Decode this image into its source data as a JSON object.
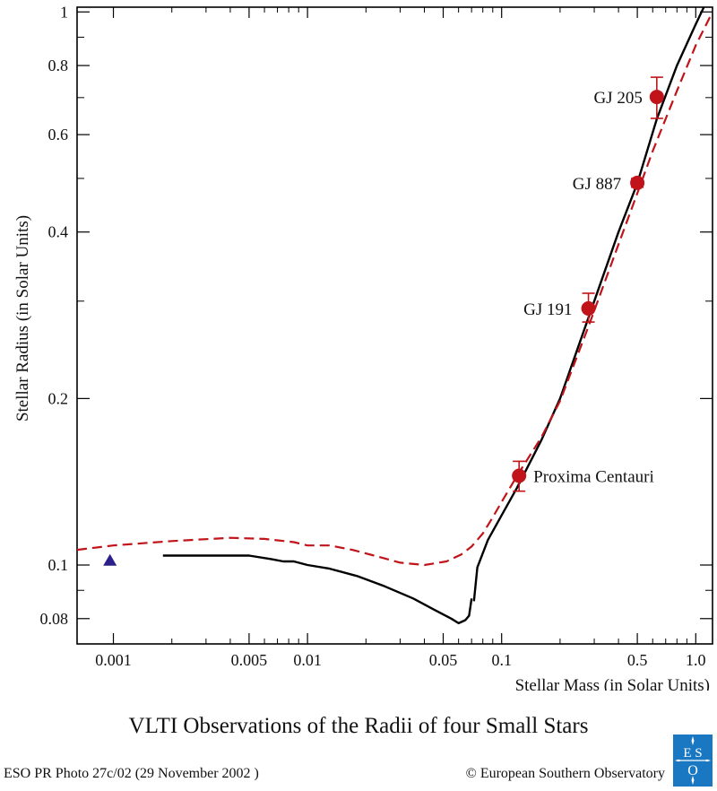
{
  "chart_data": {
    "type": "scatter",
    "title": "VLTI Observations of the Radii of four Small Stars",
    "xlabel": "Stellar Mass (in Solar Units)",
    "ylabel": "Stellar Radius (in Solar Units)",
    "xscale": "log",
    "yscale": "log",
    "xlim": [
      0.00065,
      1.22
    ],
    "ylim": [
      0.072,
      1.02
    ],
    "x_ticks": [
      {
        "value": 0.001,
        "label": "0.001"
      },
      {
        "value": 0.005,
        "label": "0.005"
      },
      {
        "value": 0.01,
        "label": "0.01"
      },
      {
        "value": 0.05,
        "label": "0.05"
      },
      {
        "value": 0.1,
        "label": "0.1"
      },
      {
        "value": 0.5,
        "label": "0.5"
      },
      {
        "value": 1.0,
        "label": "1.0"
      }
    ],
    "y_ticks": [
      {
        "value": 0.08,
        "label": "0.08"
      },
      {
        "value": 0.1,
        "label": "0.1"
      },
      {
        "value": 0.2,
        "label": "0.2"
      },
      {
        "value": 0.4,
        "label": "0.4"
      },
      {
        "value": 0.6,
        "label": "0.6"
      },
      {
        "value": 0.8,
        "label": "0.8"
      },
      {
        "value": 1.0,
        "label": "1"
      }
    ],
    "grid": false,
    "observations": [
      {
        "name": "Proxima Centauri",
        "x": 0.123,
        "y": 0.145,
        "y_low": 0.136,
        "y_high": 0.154
      },
      {
        "name": "GJ 191",
        "x": 0.28,
        "y": 0.291,
        "y_low": 0.275,
        "y_high": 0.31
      },
      {
        "name": "GJ 887",
        "x": 0.5,
        "y": 0.491,
        "y_low": 0.482,
        "y_high": 0.5
      },
      {
        "name": "GJ 205",
        "x": 0.63,
        "y": 0.702,
        "y_low": 0.642,
        "y_high": 0.762
      }
    ],
    "triangle_point": {
      "x": 0.00096,
      "y": 0.102
    },
    "series": [
      {
        "style": "solid",
        "color": "#000000",
        "points": [
          [
            0.0018,
            0.104
          ],
          [
            0.005,
            0.104
          ],
          [
            0.0065,
            0.1025
          ],
          [
            0.0075,
            0.1015
          ],
          [
            0.0085,
            0.1015
          ],
          [
            0.01,
            0.1
          ],
          [
            0.013,
            0.0985
          ],
          [
            0.018,
            0.0955
          ],
          [
            0.025,
            0.0915
          ],
          [
            0.035,
            0.087
          ],
          [
            0.045,
            0.083
          ],
          [
            0.055,
            0.08
          ],
          [
            0.06,
            0.0785
          ],
          [
            0.065,
            0.0795
          ],
          [
            0.068,
            0.081
          ],
          [
            0.07,
            0.087
          ]
        ],
        "points2": [
          [
            0.072,
            0.086
          ],
          [
            0.075,
            0.099
          ],
          [
            0.085,
            0.111
          ],
          [
            0.1,
            0.123
          ],
          [
            0.12,
            0.138
          ],
          [
            0.16,
            0.168
          ],
          [
            0.2,
            0.2
          ],
          [
            0.28,
            0.28
          ],
          [
            0.4,
            0.4
          ],
          [
            0.5,
            0.49
          ],
          [
            0.63,
            0.64
          ],
          [
            0.8,
            0.8
          ],
          [
            1.0,
            0.95
          ],
          [
            1.1,
            1.02
          ]
        ]
      },
      {
        "style": "dashed",
        "color": "#c0141a",
        "points": [
          [
            0.00065,
            0.1065
          ],
          [
            0.001,
            0.1085
          ],
          [
            0.002,
            0.1105
          ],
          [
            0.004,
            0.112
          ],
          [
            0.006,
            0.1115
          ],
          [
            0.0085,
            0.11
          ],
          [
            0.01,
            0.1085
          ],
          [
            0.013,
            0.1085
          ],
          [
            0.017,
            0.1065
          ],
          [
            0.022,
            0.104
          ],
          [
            0.03,
            0.101
          ],
          [
            0.04,
            0.1
          ],
          [
            0.052,
            0.1015
          ],
          [
            0.062,
            0.1045
          ],
          [
            0.07,
            0.108
          ],
          [
            0.08,
            0.114
          ],
          [
            0.09,
            0.122
          ],
          [
            0.1,
            0.13
          ],
          [
            0.12,
            0.145
          ],
          [
            0.16,
            0.17
          ],
          [
            0.2,
            0.198
          ],
          [
            0.28,
            0.27
          ],
          [
            0.4,
            0.38
          ],
          [
            0.5,
            0.47
          ],
          [
            0.6,
            0.56
          ],
          [
            0.8,
            0.72
          ],
          [
            1.0,
            0.87
          ],
          [
            1.22,
            1.0
          ]
        ]
      }
    ]
  },
  "footer": {
    "title": "VLTI Observations of the Radii of four Small Stars",
    "photo_credit": "ESO PR Photo 27c/02 (29 November 2002 )",
    "copyright": "© European Southern Observatory",
    "logo_text": "ESO"
  },
  "colors": {
    "observation_red": "#c0141a",
    "triangle_navy": "#2b1f8a",
    "logo_blue": "#1a78c2"
  }
}
